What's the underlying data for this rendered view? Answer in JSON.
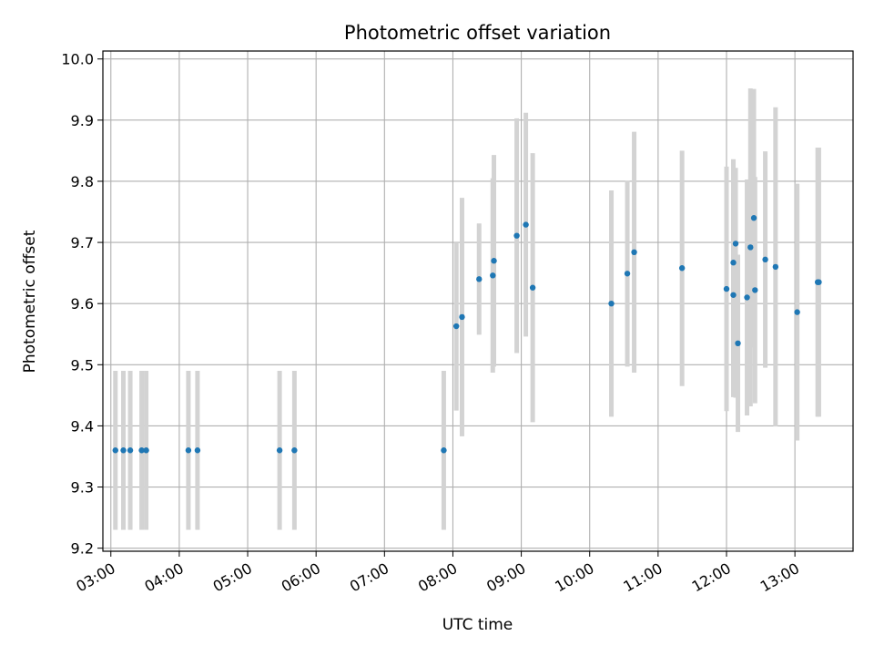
{
  "chart_data": {
    "type": "scatter",
    "title": "Photometric offset variation",
    "xlabel": "UTC time",
    "ylabel": "Photometric offset",
    "x_axis_type": "time",
    "xlim": [
      "02:53",
      "13:51"
    ],
    "ylim": [
      9.195,
      10.013
    ],
    "grid": true,
    "x_ticks": [
      "03:00",
      "04:00",
      "05:00",
      "06:00",
      "07:00",
      "08:00",
      "09:00",
      "10:00",
      "11:00",
      "12:00",
      "13:00"
    ],
    "y_ticks": [
      "9.2",
      "9.3",
      "9.4",
      "9.5",
      "9.6",
      "9.7",
      "9.8",
      "9.9",
      "10.0"
    ],
    "point_color": "#1f77b4",
    "errorbar_color": "#d3d3d3",
    "points": [
      {
        "x": "03:04",
        "y": 9.36,
        "ylow": 9.23,
        "yhigh": 9.49
      },
      {
        "x": "03:11",
        "y": 9.36,
        "ylow": 9.23,
        "yhigh": 9.49
      },
      {
        "x": "03:17",
        "y": 9.36,
        "ylow": 9.23,
        "yhigh": 9.49
      },
      {
        "x": "03:27",
        "y": 9.36,
        "ylow": 9.23,
        "yhigh": 9.49
      },
      {
        "x": "03:31",
        "y": 9.36,
        "ylow": 9.23,
        "yhigh": 9.49
      },
      {
        "x": "04:08",
        "y": 9.36,
        "ylow": 9.23,
        "yhigh": 9.49
      },
      {
        "x": "04:16",
        "y": 9.36,
        "ylow": 9.23,
        "yhigh": 9.49
      },
      {
        "x": "05:28",
        "y": 9.36,
        "ylow": 9.23,
        "yhigh": 9.49
      },
      {
        "x": "05:41",
        "y": 9.36,
        "ylow": 9.23,
        "yhigh": 9.49
      },
      {
        "x": "07:52",
        "y": 9.36,
        "ylow": 9.23,
        "yhigh": 9.49
      },
      {
        "x": "08:03",
        "y": 9.563,
        "ylow": 9.425,
        "yhigh": 9.7
      },
      {
        "x": "08:08",
        "y": 9.578,
        "ylow": 9.383,
        "yhigh": 9.773
      },
      {
        "x": "08:23",
        "y": 9.64,
        "ylow": 9.549,
        "yhigh": 9.731
      },
      {
        "x": "08:35",
        "y": 9.646,
        "ylow": 9.487,
        "yhigh": 9.805
      },
      {
        "x": "08:36",
        "y": 9.67,
        "ylow": 9.497,
        "yhigh": 9.843
      },
      {
        "x": "08:56",
        "y": 9.711,
        "ylow": 9.519,
        "yhigh": 9.903
      },
      {
        "x": "09:04",
        "y": 9.729,
        "ylow": 9.546,
        "yhigh": 9.912
      },
      {
        "x": "09:10",
        "y": 9.626,
        "ylow": 9.406,
        "yhigh": 9.846
      },
      {
        "x": "10:19",
        "y": 9.6,
        "ylow": 9.415,
        "yhigh": 9.785
      },
      {
        "x": "10:33",
        "y": 9.649,
        "ylow": 9.497,
        "yhigh": 9.801
      },
      {
        "x": "10:39",
        "y": 9.684,
        "ylow": 9.487,
        "yhigh": 9.881
      },
      {
        "x": "11:21",
        "y": 9.658,
        "ylow": 9.465,
        "yhigh": 9.85
      },
      {
        "x": "12:00",
        "y": 9.624,
        "ylow": 9.424,
        "yhigh": 9.824
      },
      {
        "x": "12:06",
        "y": 9.614,
        "ylow": 9.447,
        "yhigh": 9.781
      },
      {
        "x": "12:06",
        "y": 9.667,
        "ylow": 9.498,
        "yhigh": 9.836
      },
      {
        "x": "12:08",
        "y": 9.698,
        "ylow": 9.446,
        "yhigh": 9.822
      },
      {
        "x": "12:10",
        "y": 9.535,
        "ylow": 9.39,
        "yhigh": 9.68
      },
      {
        "x": "12:18",
        "y": 9.61,
        "ylow": 9.417,
        "yhigh": 9.803
      },
      {
        "x": "12:21",
        "y": 9.692,
        "ylow": 9.432,
        "yhigh": 9.952
      },
      {
        "x": "12:24",
        "y": 9.74,
        "ylow": 9.528,
        "yhigh": 9.951
      },
      {
        "x": "12:25",
        "y": 9.622,
        "ylow": 9.437,
        "yhigh": 9.807
      },
      {
        "x": "12:34",
        "y": 9.672,
        "ylow": 9.495,
        "yhigh": 9.849
      },
      {
        "x": "12:43",
        "y": 9.66,
        "ylow": 9.399,
        "yhigh": 9.921
      },
      {
        "x": "13:02",
        "y": 9.586,
        "ylow": 9.376,
        "yhigh": 9.796
      },
      {
        "x": "13:20",
        "y": 9.635,
        "ylow": 9.415,
        "yhigh": 9.855
      },
      {
        "x": "13:21",
        "y": 9.635,
        "ylow": 9.415,
        "yhigh": 9.855
      }
    ]
  }
}
